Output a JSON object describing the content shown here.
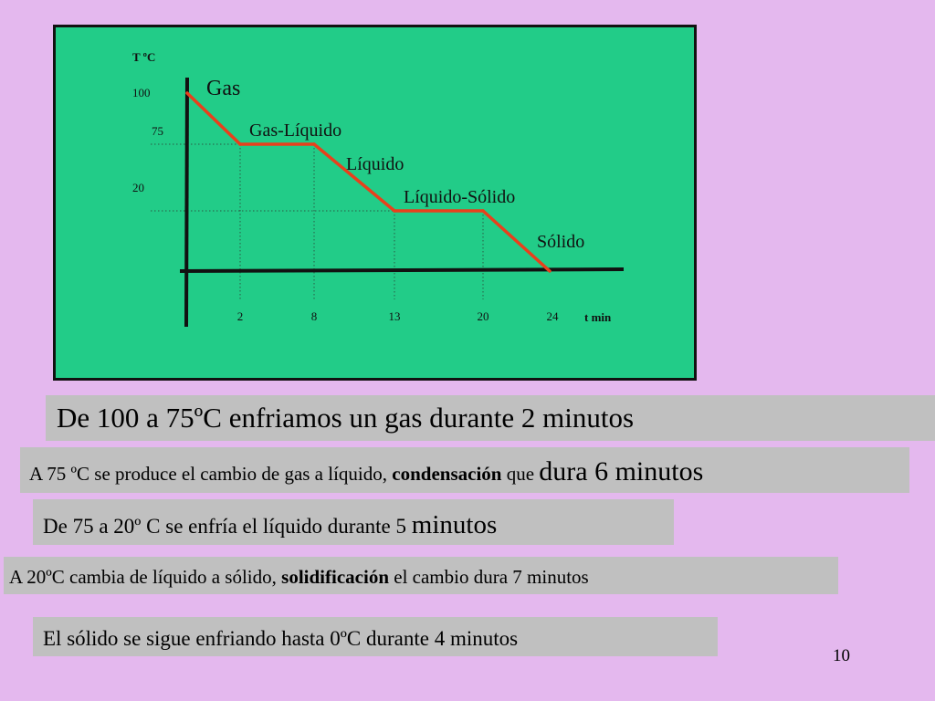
{
  "chart_data": {
    "type": "line",
    "ylabel": "T ºC",
    "xlabel": "t min",
    "x_ticks": [
      "2",
      "8",
      "13",
      "20",
      "24"
    ],
    "y_ticks": [
      "100",
      "75",
      "20"
    ],
    "series": [
      {
        "x": [
          0,
          2,
          8,
          13,
          20,
          24
        ],
        "y": [
          100,
          75,
          75,
          20,
          20,
          0
        ]
      }
    ],
    "annotations": [
      "Gas",
      "Gas-Líquido",
      "Líquido",
      "Líquido-Sólido",
      "Sólido"
    ],
    "grid": false,
    "line_color": "#e8401c",
    "background_color": "#22cc88"
  },
  "notes": {
    "n1": "De 100 a 75ºC enfriamos un gas durante 2 minutos",
    "n2_a": "A 75 ºC se produce el cambio de gas a líquido, ",
    "n2_b": "condensación",
    "n2_c": " que ",
    "n2_d": "dura 6 minutos",
    "n3_a": "De 75 a 20º C se enfría el líquido durante 5 ",
    "n3_b": "minutos",
    "n4_a": "A 20ºC cambia de líquido a sólido, ",
    "n4_b": "solidificación",
    "n4_c": " el cambio dura 7 minutos",
    "n5": "El sólido se sigue enfriando hasta 0ºC durante 4 minutos"
  },
  "page_number": "10"
}
